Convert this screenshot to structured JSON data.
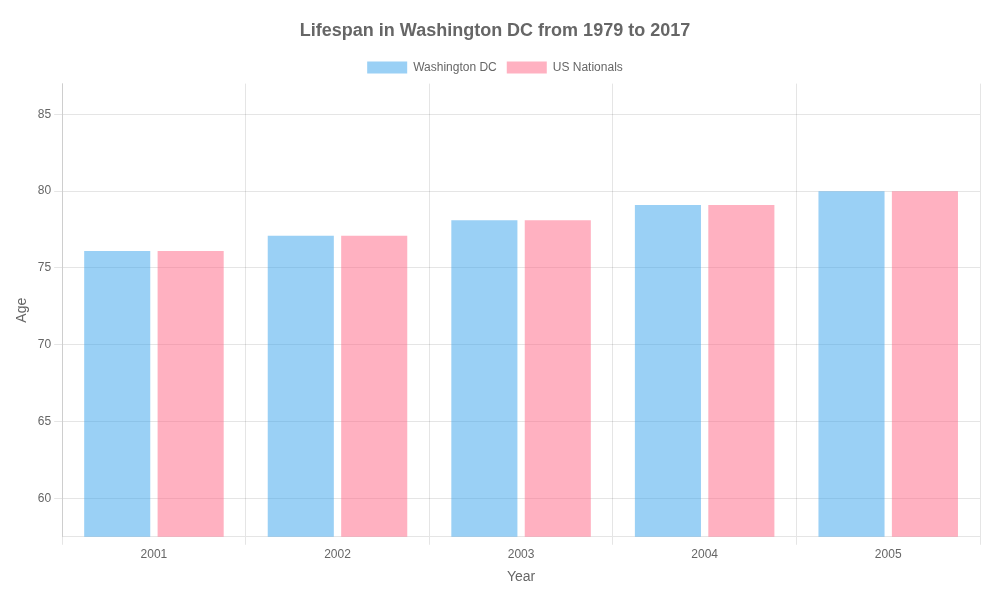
{
  "chart_data": {
    "type": "bar",
    "title": "Lifespan in Washington DC from 1979 to 2017",
    "x_label": "Year",
    "y_label": "Age",
    "categories": [
      "2001",
      "2002",
      "2003",
      "2004",
      "2005"
    ],
    "series": [
      {
        "name": "Washington DC",
        "values": [
          76.1,
          77.1,
          78.1,
          79.1,
          80.0
        ]
      },
      {
        "name": "US Nationals",
        "values": [
          76.1,
          77.1,
          78.1,
          79.1,
          80.0
        ]
      }
    ],
    "ylim": [
      57.5,
      87
    ],
    "yticks": [
      60,
      65,
      70,
      75,
      80,
      85
    ],
    "grid": true,
    "legend": "top"
  }
}
